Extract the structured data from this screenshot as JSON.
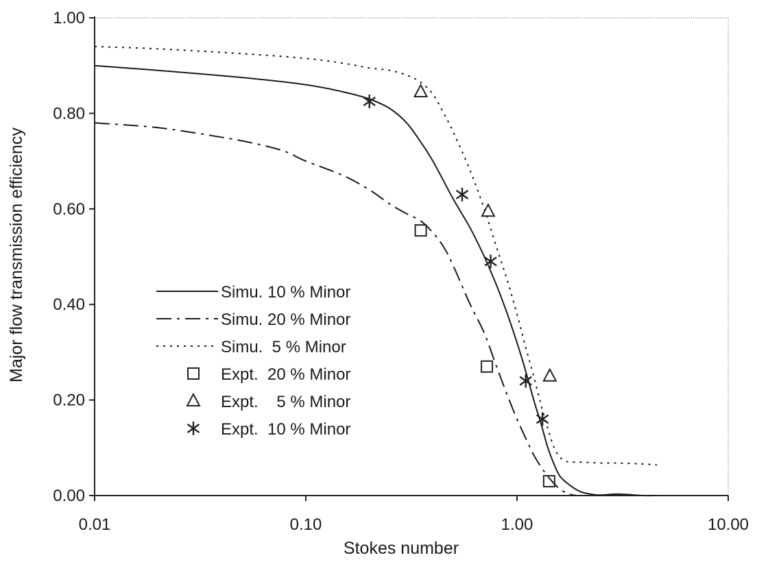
{
  "chart_data": {
    "type": "line",
    "title": "",
    "xlabel": "Stokes number",
    "ylabel": "Major flow transmission efficiency",
    "x_scale": "log",
    "xlim": [
      0.01,
      10
    ],
    "ylim": [
      0,
      1
    ],
    "x_ticks": [
      0.01,
      0.1,
      1,
      10
    ],
    "x_tick_labels": [
      "0.01",
      "0.10",
      "1.00",
      "10.00"
    ],
    "y_ticks": [
      0,
      0.2,
      0.4,
      0.6,
      0.8,
      1.0
    ],
    "y_tick_labels": [
      "0.00",
      "0.20",
      "0.40",
      "0.60",
      "0.80",
      "1.00"
    ],
    "grid": false,
    "legend_position": "lower-left",
    "series": [
      {
        "name": "Simu. 10 % Minor",
        "kind": "line",
        "style": "solid",
        "x": [
          0.01,
          0.02,
          0.05,
          0.1,
          0.15,
          0.2,
          0.25,
          0.3,
          0.35,
          0.4,
          0.5,
          0.6,
          0.7,
          0.8,
          0.9,
          1.0,
          1.1,
          1.2,
          1.3,
          1.4,
          1.5,
          1.6,
          1.8,
          2.0,
          2.3,
          2.5,
          3.0,
          4.0,
          4.6
        ],
        "y": [
          0.9,
          0.89,
          0.875,
          0.86,
          0.845,
          0.83,
          0.81,
          0.78,
          0.74,
          0.7,
          0.62,
          0.56,
          0.5,
          0.44,
          0.38,
          0.32,
          0.26,
          0.2,
          0.15,
          0.1,
          0.065,
          0.04,
          0.02,
          0.008,
          0.002,
          0.001,
          0.003,
          0.0,
          0.0
        ]
      },
      {
        "name": "Simu. 20 % Minor",
        "kind": "line",
        "style": "dashdot",
        "x": [
          0.01,
          0.02,
          0.04,
          0.06,
          0.08,
          0.1,
          0.15,
          0.2,
          0.25,
          0.3,
          0.35,
          0.4,
          0.45,
          0.5,
          0.6,
          0.7,
          0.8,
          0.9,
          1.0,
          1.1,
          1.2,
          1.3,
          1.4,
          1.5,
          1.6,
          1.7,
          1.8,
          1.9
        ],
        "y": [
          0.78,
          0.77,
          0.75,
          0.735,
          0.72,
          0.7,
          0.67,
          0.64,
          0.61,
          0.59,
          0.575,
          0.55,
          0.52,
          0.48,
          0.4,
          0.34,
          0.27,
          0.21,
          0.16,
          0.12,
          0.085,
          0.06,
          0.04,
          0.025,
          0.013,
          0.006,
          0.002,
          0.0
        ]
      },
      {
        "name": "Simu.  5 % Minor",
        "kind": "line",
        "style": "dotted",
        "x": [
          0.01,
          0.02,
          0.05,
          0.1,
          0.15,
          0.2,
          0.25,
          0.3,
          0.35,
          0.4,
          0.45,
          0.5,
          0.6,
          0.7,
          0.8,
          0.9,
          1.0,
          1.1,
          1.2,
          1.3,
          1.4,
          1.5,
          1.6,
          1.7,
          1.8,
          2.0,
          2.5,
          3.0,
          4.0,
          4.6
        ],
        "y": [
          0.94,
          0.935,
          0.925,
          0.915,
          0.905,
          0.895,
          0.89,
          0.88,
          0.865,
          0.84,
          0.8,
          0.76,
          0.68,
          0.6,
          0.52,
          0.45,
          0.38,
          0.31,
          0.25,
          0.19,
          0.14,
          0.1,
          0.08,
          0.072,
          0.07,
          0.07,
          0.068,
          0.068,
          0.066,
          0.064
        ]
      },
      {
        "name": "Expt.  20 % Minor",
        "kind": "markers",
        "marker": "square",
        "x": [
          0.35,
          0.72,
          1.42
        ],
        "y": [
          0.555,
          0.27,
          0.03
        ]
      },
      {
        "name": "Expt.    5 % Minor",
        "kind": "markers",
        "marker": "triangle",
        "x": [
          0.35,
          0.73,
          1.43
        ],
        "y": [
          0.845,
          0.595,
          0.25
        ]
      },
      {
        "name": "Expt.  10 % Minor",
        "kind": "markers",
        "marker": "asterisk",
        "x": [
          0.2,
          0.55,
          0.75,
          1.1,
          1.32
        ],
        "y": [
          0.825,
          0.63,
          0.49,
          0.24,
          0.16
        ]
      }
    ]
  }
}
